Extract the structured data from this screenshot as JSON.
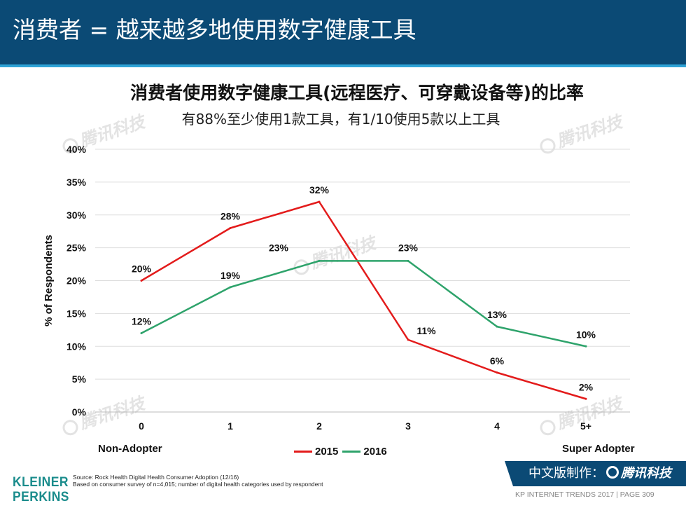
{
  "header": {
    "title": "消费者 = 越来越多地使用数字健康工具"
  },
  "watermark": {
    "text": "腾讯科技"
  },
  "chart_data": {
    "type": "line",
    "title": "消费者使用数字健康工具(远程医疗、可穿戴设备等)的比率",
    "subtitle": "有88%至少使用1款工具，有1/10使用5款以上工具",
    "categories": [
      "0",
      "1",
      "2",
      "3",
      "4",
      "5+"
    ],
    "ylabel": "% of Respondents",
    "xlabel": "",
    "ylim": [
      0,
      40
    ],
    "yticks": [
      "0%",
      "5%",
      "10%",
      "15%",
      "20%",
      "25%",
      "30%",
      "35%",
      "40%"
    ],
    "grid": true,
    "series": [
      {
        "name": "2015",
        "color": "#e31b1b",
        "values": [
          20,
          28,
          32,
          11,
          6,
          2
        ],
        "labels": [
          "20%",
          "28%",
          "32%",
          "11%",
          "6%",
          "2%"
        ]
      },
      {
        "name": "2016",
        "color": "#2ea36b",
        "values": [
          12,
          19,
          23,
          23,
          13,
          10
        ],
        "labels": [
          "12%",
          "19%",
          "23%",
          "23%",
          "13%",
          "10%"
        ]
      }
    ],
    "annotations": {
      "left": "Non-Adopter",
      "right": "Super Adopter"
    }
  },
  "source": {
    "line1": "Source: Rock Health Digital Health Consumer Adoption (12/16)",
    "line2": "Based on consumer survey of n=4,015; number of digital health categories used by respondent"
  },
  "logo": {
    "line1": "KLEINER",
    "line2": "PERKINS"
  },
  "badge": {
    "prefix": "中文版制作：",
    "brand": "腾讯科技"
  },
  "footer": {
    "text": "KP INTERNET TRENDS 2017  |  PAGE 309"
  }
}
